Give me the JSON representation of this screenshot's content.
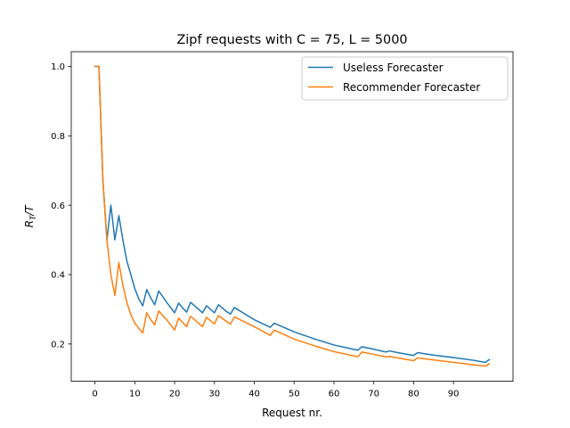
{
  "chart_data": {
    "type": "line",
    "title": "Zipf requests with C = 75, L = 5000",
    "xlabel": "Request nr.",
    "ylabel_main": "R",
    "ylabel_sub": "T",
    "ylabel_tail": "/T",
    "xlim": [
      -5.95,
      104.95
    ],
    "ylim": [
      0.0925,
      1.0425
    ],
    "xticks": [
      0,
      10,
      20,
      30,
      40,
      50,
      60,
      70,
      80,
      90
    ],
    "xtick_labels": [
      "0",
      "10",
      "20",
      "30",
      "40",
      "50",
      "60",
      "70",
      "80",
      "90"
    ],
    "yticks": [
      0.2,
      0.4,
      0.6,
      0.8,
      1.0
    ],
    "ytick_labels": [
      "0.2",
      "0.4",
      "0.6",
      "0.8",
      "1.0"
    ],
    "grid": false,
    "legend_position": "top-right",
    "series": [
      {
        "name": "Useless Forecaster",
        "color": "#1f77b4",
        "x": [
          0,
          1,
          2,
          3,
          4,
          5,
          6,
          7,
          8,
          9,
          10,
          11,
          12,
          13,
          14,
          15,
          16,
          18,
          20,
          21,
          22,
          23,
          24,
          26,
          27,
          28,
          29,
          30,
          31,
          33,
          34,
          35,
          40,
          44,
          45,
          50,
          55,
          60,
          66,
          67,
          70,
          73,
          74,
          76,
          80,
          81,
          85,
          90,
          95,
          98,
          99
        ],
        "y": [
          1.0,
          1.0,
          0.67,
          0.5,
          0.6,
          0.5,
          0.57,
          0.5,
          0.44,
          0.4,
          0.36,
          0.33,
          0.31,
          0.357,
          0.333,
          0.313,
          0.353,
          0.32,
          0.29,
          0.318,
          0.304,
          0.292,
          0.32,
          0.3,
          0.29,
          0.31,
          0.3,
          0.29,
          0.313,
          0.294,
          0.286,
          0.305,
          0.27,
          0.248,
          0.26,
          0.235,
          0.215,
          0.197,
          0.182,
          0.192,
          0.185,
          0.177,
          0.18,
          0.175,
          0.167,
          0.175,
          0.168,
          0.161,
          0.153,
          0.147,
          0.155
        ]
      },
      {
        "name": "Recommender Forecaster",
        "color": "#ff7f0e",
        "x": [
          0,
          1,
          2,
          3,
          4,
          5,
          6,
          7,
          8,
          9,
          10,
          11,
          12,
          13,
          14,
          15,
          16,
          18,
          20,
          21,
          22,
          23,
          24,
          26,
          27,
          28,
          29,
          30,
          31,
          33,
          34,
          35,
          40,
          44,
          45,
          50,
          55,
          60,
          66,
          67,
          70,
          73,
          74,
          76,
          80,
          81,
          85,
          90,
          95,
          98,
          99
        ],
        "y": [
          1.0,
          1.0,
          0.67,
          0.5,
          0.4,
          0.34,
          0.435,
          0.37,
          0.32,
          0.285,
          0.26,
          0.245,
          0.232,
          0.29,
          0.27,
          0.255,
          0.295,
          0.27,
          0.24,
          0.275,
          0.262,
          0.25,
          0.28,
          0.26,
          0.25,
          0.277,
          0.267,
          0.258,
          0.282,
          0.265,
          0.257,
          0.278,
          0.25,
          0.225,
          0.24,
          0.214,
          0.195,
          0.178,
          0.163,
          0.177,
          0.17,
          0.163,
          0.164,
          0.16,
          0.152,
          0.16,
          0.154,
          0.147,
          0.14,
          0.136,
          0.143
        ]
      }
    ]
  }
}
